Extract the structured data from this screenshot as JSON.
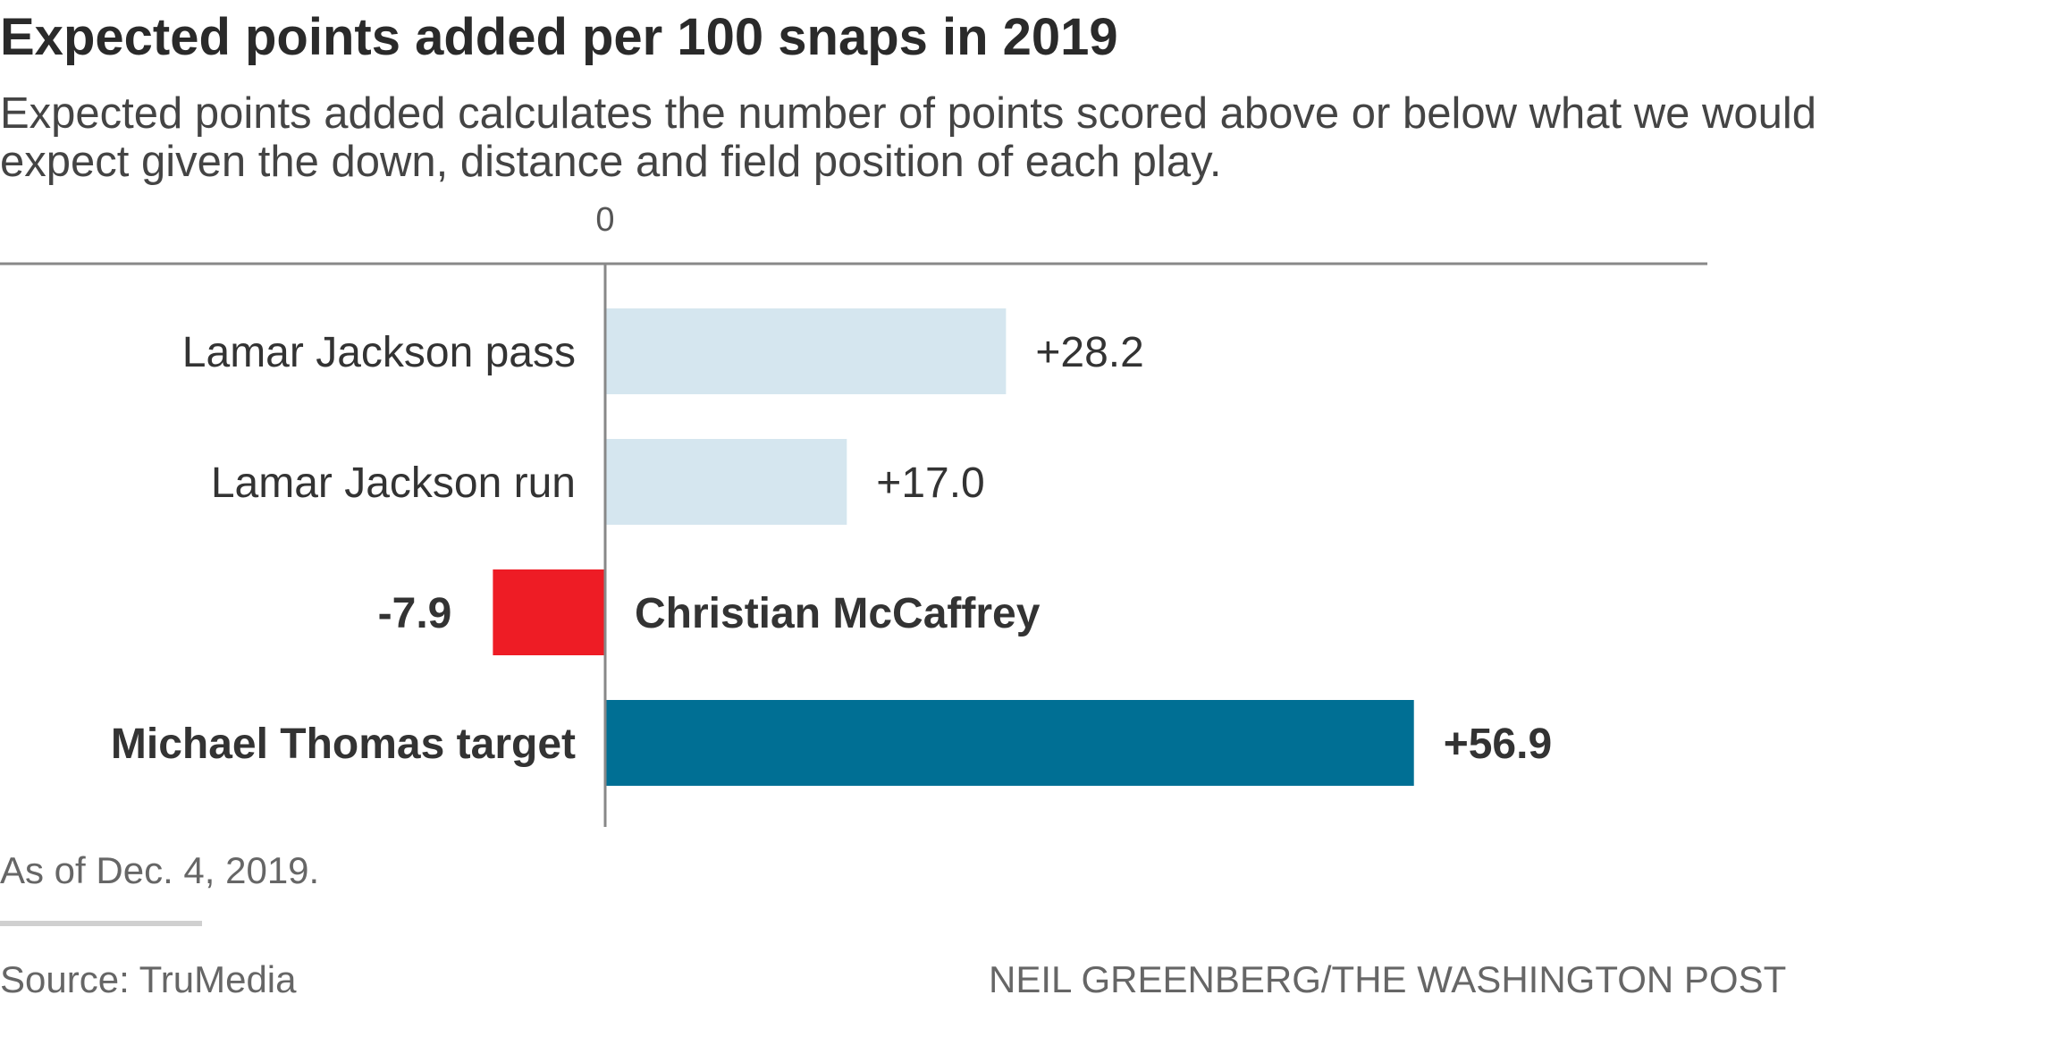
{
  "title": "Expected points added per 100 snaps in 2019",
  "subtitle": "Expected points added calculates the number of points scored above or below what we would expect given the down, distance and field position of each play.",
  "note": "As of Dec. 4, 2019.",
  "source": "Source: TruMedia",
  "credit": "NEIL GREENBERG/THE WASHINGTON POST",
  "chart_data": {
    "type": "bar",
    "orientation": "horizontal",
    "zero_label": "0",
    "categories": [
      "Lamar Jackson pass",
      "Lamar Jackson run",
      "Christian McCaffrey",
      "Michael Thomas target"
    ],
    "values": [
      28.2,
      17.0,
      -7.9,
      56.9
    ],
    "value_labels": [
      "+28.2",
      "+17.0",
      "-7.9",
      "+56.9"
    ],
    "bold": [
      false,
      false,
      true,
      true
    ],
    "colors": [
      "#d5e6ef",
      "#d5e6ef",
      "#ee1c25",
      "#006f94"
    ],
    "xlim": [
      -42.6,
      77.5
    ],
    "grid": false
  }
}
